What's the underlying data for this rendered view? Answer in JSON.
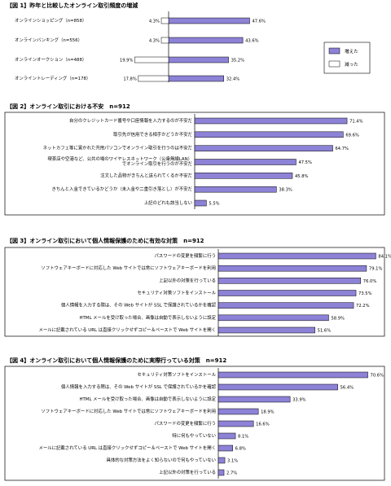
{
  "colors": {
    "bar_fill": "#8C82D6",
    "bar_stroke": "#000000",
    "decrease_fill": "#ffffff",
    "background": "#ffffff"
  },
  "chart_data": [
    {
      "type": "bar",
      "orientation": "horizontal",
      "stacking": "diverging",
      "title": "【図 1】昨年と比較したオンライン取引頻度の増減",
      "categories": [
        "オンラインショッピング（n=858）",
        "オンラインバンキング（n=556）",
        "オンラインオークション（n=488）",
        "オンライントレーディング（n=178）"
      ],
      "series": [
        {
          "name": "増えた",
          "values": [
            47.6,
            43.6,
            35.2,
            32.4
          ],
          "color": "#8C82D6"
        },
        {
          "name": "減った",
          "values": [
            4.3,
            4.3,
            19.9,
            17.8
          ],
          "color": "#ffffff"
        }
      ],
      "value_labels": {
        "increase": [
          "47.6%",
          "43.6%",
          "35.2%",
          "32.4%"
        ],
        "decrease": [
          "4.3%",
          "4.3%",
          "19.9%",
          "17.8%"
        ]
      },
      "legend_position": "right",
      "grid": false
    },
    {
      "type": "bar",
      "orientation": "horizontal",
      "title": "【図 2】オンライン取引における不安　n=912",
      "categories": [
        "自分のクレジットカード番号や口座情報を入力するのが不安だ",
        "取引先が信用できる相手かどうか不安だ",
        "ネットカフェ等に置かれた共用パソコンでオンライン取引を行うのは不安だ",
        "喫茶店や空港など、公共の場のワイヤレスネットワーク（公衆無線LAN）でオンライン取引を行うのが不安だ",
        "注文した品物がきちんと送られてくるか不安だ",
        "きちんと入金できているかどうか（未入金や二重引き落とし）が不安だ",
        "上記のどれも該当しない"
      ],
      "values": [
        71.4,
        69.6,
        64.7,
        47.5,
        45.8,
        38.3,
        5.5
      ],
      "value_labels": [
        "71.4%",
        "69.6%",
        "64.7%",
        "47.5%",
        "45.8%",
        "38.3%",
        "5.5%"
      ],
      "grid": false
    },
    {
      "type": "bar",
      "orientation": "horizontal",
      "title": "【図 3】オンライン取引において個人情報保護のために有効な対策　n=912",
      "categories": [
        "パスワードの変更を頻繁に行う",
        "ソフトウェアキーボードに対応した Web サイトでは常にソフトウェアキーボードを利用",
        "上記以外の対策を行っている",
        "セキュリティ対策ソフトをインストール",
        "個人情報を入力する際は、その Web サイトが SSL で保護されているかを確認",
        "HTML メールを受け取った場合、画像は自動で表示しないように設定",
        "メールに記載されている URL は直接クリックせずコピー＆ペーストで Web サイトを開く"
      ],
      "values": [
        84.1,
        79.1,
        76.0,
        73.5,
        72.2,
        58.9,
        51.6
      ],
      "value_labels": [
        "84.1%",
        "79.1%",
        "76.0%",
        "73.5%",
        "72.2%",
        "58.9%",
        "51.6%"
      ],
      "grid": false
    },
    {
      "type": "bar",
      "orientation": "horizontal",
      "title": "【図 4】オンライン取引において個人情報保護のために実際行っている対策　n=912",
      "categories": [
        "セキュリティ対策ソフトをインストール",
        "個人情報を入力する際は、その Web サイトが SSL で保護されているかを確認",
        "HTML メールを受け取った場合、画像は自動で表示しないように設定",
        "ソフトウェアキーボードに対応した Web サイトでは常にソフトウェアキーボードを利用",
        "パスワードの変更を頻繁に行う",
        "特に何もやっていない",
        "メールに記載されている URL は直接クリックせずコピー＆ペーストで Web サイトを開く",
        "具体的な対策方法をよく知らないので何もやっていない",
        "上記以外の対策を行っている"
      ],
      "values": [
        70.6,
        56.4,
        33.9,
        18.9,
        16.6,
        8.1,
        6.8,
        3.1,
        2.7
      ],
      "value_labels": [
        "70.6%",
        "56.4%",
        "33.9%",
        "18.9%",
        "16.6%",
        "8.1%",
        "6.8%",
        "3.1%",
        "2.7%"
      ],
      "grid": false
    }
  ]
}
